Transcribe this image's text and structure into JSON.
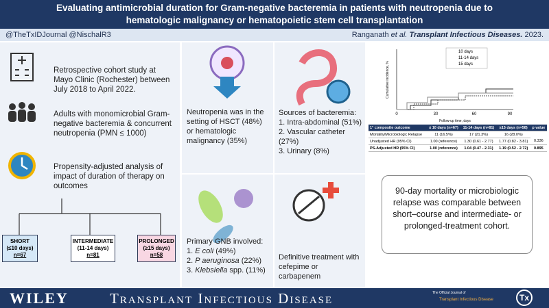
{
  "header": {
    "title_line1": "Evaluating antimicrobial duration for Gram-negative bacteremia in patients with neutropenia due to",
    "title_line2": "hematologic malignancy or hematopoietic stem cell transplantation",
    "twitter": "@TheTxIDJournal  @NischalR3",
    "citation": {
      "author": "Ranganath",
      "etal": "et al.",
      "journal": "Transplant Infectious Diseases.",
      "year": "2023."
    }
  },
  "methods": [
    "Retrospective cohort study at Mayo Clinic (Rochester) between July 2018 to April 2022.",
    "Adults with monomicrobial Gram-negative bacteremia & concurrent neutropenia (PMN ≤ 1000)",
    "Propensity-adjusted analysis of impact of duration of therapy on outcomes"
  ],
  "groups": [
    {
      "name": "SHORT",
      "range": "(≤10 days)",
      "n": "n=67"
    },
    {
      "name": "INTERMEDIATE",
      "range": "(11-14 days)",
      "n": "n=81"
    },
    {
      "name": "PROLONGED",
      "range": "(≥15 days)",
      "n": "n=58"
    }
  ],
  "panels": {
    "neutropenia": "Neutropenia was in the setting of HSCT (48%) or hematologic malignancy (35%)",
    "sources": {
      "title": "Sources of bacteremia:",
      "items": [
        "1. Intra-abdominal (51%)",
        "2. Vascular catheter (27%)",
        "3. Urinary (8%)"
      ]
    },
    "gnb": {
      "title": "Primary GNB involved:",
      "items": [
        {
          "num": "1.",
          "name": "E coli",
          "pct": "(49%)"
        },
        {
          "num": "2.",
          "name": "P aeruginosa",
          "pct": "(22%)"
        },
        {
          "num": "3.",
          "name": "Klebsiella",
          "pct": "spp. (11%)"
        }
      ]
    },
    "treatment": "Definitive treatment with cefepime or carbapenem"
  },
  "inset_chart": {
    "legend": [
      "10 days",
      "11-14 days",
      "15 days"
    ],
    "y_label": "Cumulative incidence, %",
    "x_label": "Follow-up time, days",
    "x_ticks": [
      "0",
      "30",
      "60",
      "90"
    ]
  },
  "table": {
    "header": [
      "1° composite outcome",
      "≤ 10 days (n=67)",
      "11-14 days (n=81)",
      "≥15 days (n=58)",
      "p value"
    ],
    "rows": [
      [
        "Mortality/Microbiologic Relapse",
        "11 (16.5%)",
        "17 (21.3%)",
        "16 (28.0%)"
      ],
      [
        "Unadjusted HR (95% CI)",
        "1.00 (reference)",
        "1.30 (0.61 - 2.77)",
        "1.77 (0.82 - 3.81)",
        "0.336"
      ],
      [
        "PS-Adjusted HR (95% CI)",
        "1.00 (reference)",
        "1.04 (0.47 - 2.31)",
        "1.19 (0.52 - 2.72)",
        "0.895"
      ]
    ]
  },
  "conclusion": "90-day mortality or microbiologic relapse was comparable between short–course and intermediate- or prolonged-treatment cohort.",
  "footer": {
    "publisher": "WILEY",
    "journal": "Transplant Infectious Disease",
    "official": "The Official Journal of",
    "society": "Transplant Infectious Disease",
    "logo": "Tx"
  }
}
